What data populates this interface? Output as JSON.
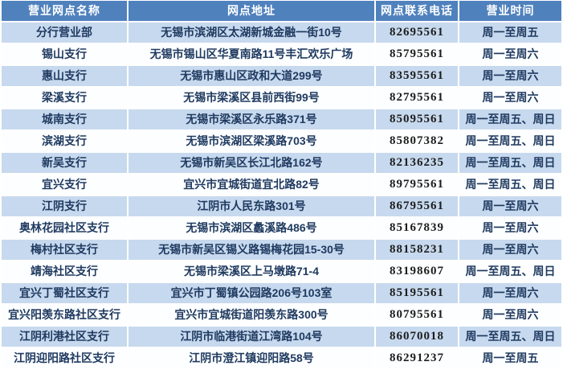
{
  "chart_data": {
    "type": "table",
    "columns": [
      "营业网点名称",
      "网点地址",
      "网点联系电话",
      "营业时间"
    ],
    "rows": [
      [
        "分行营业部",
        "无锡市滨湖区太湖新城金融一街10号",
        "82695561",
        "周一至周五"
      ],
      [
        "锡山支行",
        "无锡市锡山区华夏南路11号丰汇欢乐广场",
        "85795561",
        "周一至周六"
      ],
      [
        "惠山支行",
        "无锡市惠山区政和大道299号",
        "83595561",
        "周一至周六"
      ],
      [
        "梁溪支行",
        "无锡市梁溪区县前西街99号",
        "82795561",
        "周一至周六"
      ],
      [
        "城南支行",
        "无锡市梁溪区永乐路371号",
        "85095561",
        "周一至周五、周日"
      ],
      [
        "滨湖支行",
        "无锡市滨湖区梁溪路703号",
        "85807382",
        "周一至周五、周日"
      ],
      [
        "新吴支行",
        "无锡市新吴区长江北路162号",
        "82136235",
        "周一至周五、周日"
      ],
      [
        "宜兴支行",
        "宜兴市宜城街道宜北路82号",
        "89795561",
        "周一至周五、周日"
      ],
      [
        "江阴支行",
        "江阴市人民东路301号",
        "86795561",
        "周一至周六"
      ],
      [
        "奥林花园社区支行",
        "无锡市滨湖区蠡溪路486号",
        "85167839",
        "周一至周六"
      ],
      [
        "梅村社区支行",
        "无锡市新吴区锡义路锡梅花园15-30号",
        "88158231",
        "周一至周六"
      ],
      [
        "靖海社区支行",
        "无锡市梁溪区上马墩路71-4",
        "83198607",
        "周一至周五、周日"
      ],
      [
        "宜兴丁蜀社区支行",
        "宜兴市丁蜀镇公园路206号103室",
        "85195561",
        "周一至周六"
      ],
      [
        "宜兴阳羡东路社区支行",
        "宜兴市宜城街道阳羡东路300号",
        "80795561",
        "周一至周六"
      ],
      [
        "江阴利港社区支行",
        "江阴市临港街道江湾路104号",
        "86070018",
        "周一至周五、周日"
      ],
      [
        "江阴迎阳路社区支行",
        "江阴市澄江镇迎阳路58号",
        "86291237",
        "周一至周五"
      ]
    ],
    "layout": {
      "grid": "white gridlines",
      "header_position": "top",
      "row_striping": "first data row shaded, alternating"
    }
  },
  "colors": {
    "header_bg": "#4f81bd",
    "header_text": "#ffffff",
    "alt_row_bg": "#c7d9ee",
    "plain_row_bg": "#fdfeff",
    "body_text": "#1f3a60",
    "phone_text": "#1d1d1d",
    "grid_line": "#ffffff"
  }
}
